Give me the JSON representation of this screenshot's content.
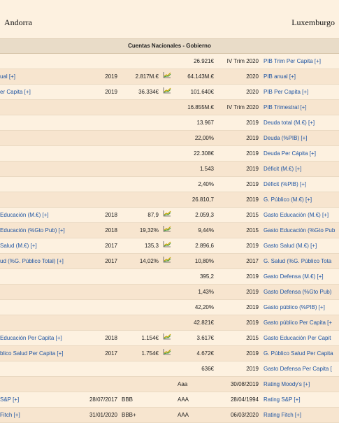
{
  "header": {
    "left_country": "Andorra",
    "right_country": "Luxemburgo"
  },
  "section_title": "Cuentas Nacionales - Gobierno",
  "rows": [
    {
      "lname": "",
      "lyear": "",
      "lval": "",
      "chart": false,
      "rval": "26.921€",
      "ryear": "IV Trim 2020",
      "rname": "PIB Trim Per Capita [+]"
    },
    {
      "lname": "ual [+]",
      "lyear": "2019",
      "lval": "2.817M.€",
      "chart": true,
      "rval": "64.143M.€",
      "ryear": "2020",
      "rname": "PIB anual [+]"
    },
    {
      "lname": "er Capita [+]",
      "lyear": "2019",
      "lval": "36.334€",
      "chart": true,
      "rval": "101.640€",
      "ryear": "2020",
      "rname": "PIB Per Capita [+]"
    },
    {
      "lname": "",
      "lyear": "",
      "lval": "",
      "chart": false,
      "rval": "16.855M.€",
      "ryear": "IV Trim 2020",
      "rname": "PIB Trimestral [+]"
    },
    {
      "lname": "",
      "lyear": "",
      "lval": "",
      "chart": false,
      "rval": "13.967",
      "ryear": "2019",
      "rname": "Deuda total (M.€) [+]"
    },
    {
      "lname": "",
      "lyear": "",
      "lval": "",
      "chart": false,
      "rval": "22,00%",
      "ryear": "2019",
      "rname": "Deuda (%PIB) [+]"
    },
    {
      "lname": "",
      "lyear": "",
      "lval": "",
      "chart": false,
      "rval": "22.308€",
      "ryear": "2019",
      "rname": "Deuda Per Cápita [+]"
    },
    {
      "lname": "",
      "lyear": "",
      "lval": "",
      "chart": false,
      "rval": "1.543",
      "ryear": "2019",
      "rname": "Déficit (M.€) [+]"
    },
    {
      "lname": "",
      "lyear": "",
      "lval": "",
      "chart": false,
      "rval": "2,40%",
      "ryear": "2019",
      "rname": "Déficit (%PIB) [+]"
    },
    {
      "lname": "",
      "lyear": "",
      "lval": "",
      "chart": false,
      "rval": "26.810,7",
      "ryear": "2019",
      "rname": "G. Público (M.€) [+]"
    },
    {
      "lname": "Educación (M.€) [+]",
      "lyear": "2018",
      "lval": "87,9",
      "chart": true,
      "rval": "2.059,3",
      "ryear": "2015",
      "rname": "Gasto Educación (M.€) [+]"
    },
    {
      "lname": "Educación (%Gto Pub) [+]",
      "lyear": "2018",
      "lval": "19,32%",
      "chart": true,
      "rval": "9,44%",
      "ryear": "2015",
      "rname": "Gasto Educación (%Gto Pub"
    },
    {
      "lname": "Salud (M.€) [+]",
      "lyear": "2017",
      "lval": "135,3",
      "chart": true,
      "rval": "2.896,6",
      "ryear": "2019",
      "rname": "Gasto Salud (M.€) [+]"
    },
    {
      "lname": "ud (%G. Público Total) [+]",
      "lyear": "2017",
      "lval": "14,02%",
      "chart": true,
      "rval": "10,80%",
      "ryear": "2017",
      "rname": "G. Salud (%G. Público Tota"
    },
    {
      "lname": "",
      "lyear": "",
      "lval": "",
      "chart": false,
      "rval": "395,2",
      "ryear": "2019",
      "rname": "Gasto Defensa (M.€) [+]"
    },
    {
      "lname": "",
      "lyear": "",
      "lval": "",
      "chart": false,
      "rval": "1,43%",
      "ryear": "2019",
      "rname": "Gasto Defensa (%Gto Pub)"
    },
    {
      "lname": "",
      "lyear": "",
      "lval": "",
      "chart": false,
      "rval": "42,20%",
      "ryear": "2019",
      "rname": "Gasto público (%PIB) [+]"
    },
    {
      "lname": "",
      "lyear": "",
      "lval": "",
      "chart": false,
      "rval": "42.821€",
      "ryear": "2019",
      "rname": "Gasto público Per Capita [+"
    },
    {
      "lname": "Educación Per Capita [+]",
      "lyear": "2018",
      "lval": "1.154€",
      "chart": true,
      "rval": "3.617€",
      "ryear": "2015",
      "rname": "Gasto Educación Per Capit"
    },
    {
      "lname": "blico Salud Per Capita [+]",
      "lyear": "2017",
      "lval": "1.754€",
      "chart": true,
      "rval": "4.672€",
      "ryear": "2019",
      "rname": "G. Público Salud Per Capita"
    },
    {
      "lname": "",
      "lyear": "",
      "lval": "",
      "chart": false,
      "rval": "636€",
      "ryear": "2019",
      "rname": "Gasto Defensa Per Capita ["
    }
  ],
  "ratings": [
    {
      "lname": "",
      "ldate": "",
      "lrate": "",
      "rrate": "Aaa",
      "rdate": "30/08/2019",
      "rname": "Rating Moody's [+]"
    },
    {
      "lname": "S&P [+]",
      "ldate": "28/07/2017",
      "lrate": "BBB",
      "rrate": "AAA",
      "rdate": "28/04/1994",
      "rname": "Rating S&P [+]"
    },
    {
      "lname": "Fitch [+]",
      "ldate": "31/01/2020",
      "lrate": "BBB+",
      "rrate": "AAA",
      "rdate": "06/03/2020",
      "rname": "Rating Fitch [+]"
    }
  ],
  "colors": {
    "link": "#1f55a3",
    "bg": "#fdf1e0",
    "alt": "#f7e5cf",
    "chart_icon": "chart-trend-icon"
  }
}
